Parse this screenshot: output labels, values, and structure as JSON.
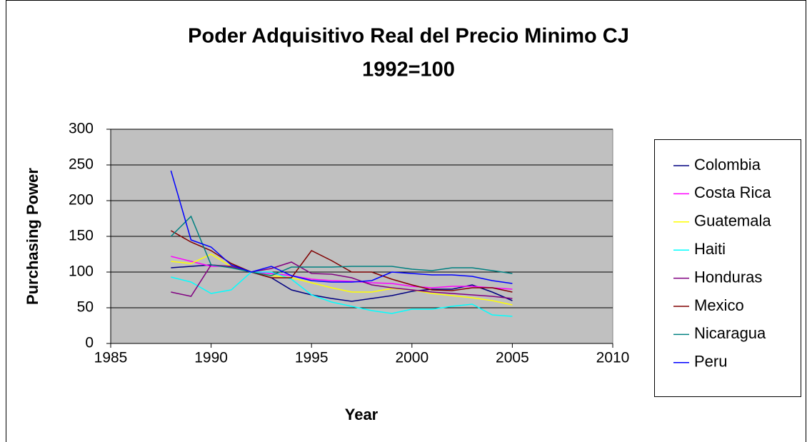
{
  "chart_data": {
    "type": "line",
    "title": [
      "Poder Adquisitivo Real del Precio Minimo CJ",
      "1992=100"
    ],
    "x_label": "Year",
    "y_label": "Purchasing Power",
    "x": [
      1988,
      1989,
      1990,
      1991,
      1992,
      1993,
      1994,
      1995,
      1996,
      1997,
      1998,
      1999,
      2000,
      2001,
      2002,
      2003,
      2004,
      2005
    ],
    "series": [
      {
        "name": "Colombia",
        "color": "#000080",
        "values": [
          106,
          108,
          110,
          107,
          100,
          92,
          75,
          68,
          63,
          59,
          63,
          67,
          73,
          76,
          76,
          82,
          72,
          60
        ]
      },
      {
        "name": "Costa Rica",
        "color": "#ff00ff",
        "values": [
          122,
          115,
          108,
          108,
          100,
          98,
          95,
          90,
          88,
          87,
          85,
          84,
          80,
          78,
          80,
          80,
          78,
          76
        ]
      },
      {
        "name": "Guatemala",
        "color": "#ffff00",
        "values": [
          115,
          112,
          125,
          108,
          100,
          95,
          92,
          85,
          78,
          72,
          72,
          77,
          75,
          70,
          67,
          64,
          60,
          54
        ]
      },
      {
        "name": "Haiti",
        "color": "#00ffff",
        "values": [
          93,
          86,
          70,
          75,
          100,
          100,
          90,
          68,
          58,
          52,
          46,
          42,
          48,
          48,
          52,
          55,
          40,
          38
        ]
      },
      {
        "name": "Honduras",
        "color": "#800080",
        "values": [
          72,
          66,
          110,
          108,
          100,
          105,
          114,
          98,
          97,
          92,
          82,
          78,
          75,
          72,
          70,
          68,
          66,
          63
        ]
      },
      {
        "name": "Mexico",
        "color": "#800000",
        "values": [
          158,
          142,
          130,
          112,
          100,
          92,
          92,
          130,
          116,
          100,
          100,
          90,
          82,
          75,
          74,
          78,
          78,
          72
        ]
      },
      {
        "name": "Nicaragua",
        "color": "#008080",
        "values": [
          150,
          178,
          110,
          106,
          100,
          95,
          107,
          107,
          107,
          108,
          108,
          108,
          104,
          102,
          106,
          106,
          102,
          98
        ]
      },
      {
        "name": "Peru",
        "color": "#0000ff",
        "values": [
          242,
          145,
          135,
          110,
          100,
          108,
          95,
          88,
          86,
          86,
          88,
          100,
          98,
          96,
          96,
          94,
          88,
          84
        ]
      }
    ],
    "xlim": [
      1985,
      2010
    ],
    "xticks": [
      1985,
      1990,
      1995,
      2000,
      2005,
      2010
    ],
    "ylim": [
      0,
      300
    ],
    "yticks": [
      0,
      50,
      100,
      150,
      200,
      250,
      300
    ],
    "grid": true,
    "legend": "right"
  }
}
